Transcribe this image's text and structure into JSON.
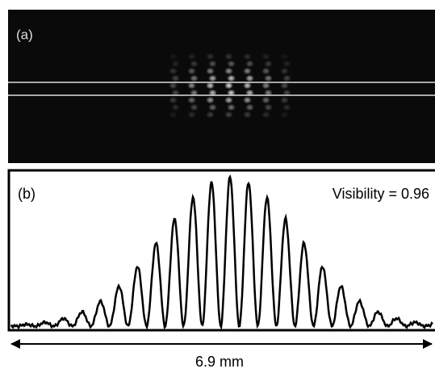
{
  "panels": [
    {
      "label": "(a)"
    },
    {
      "label": "(b)",
      "annotation": "Visibility = 0.96"
    }
  ],
  "scale_bar": {
    "label": "6.9 mm"
  }
}
